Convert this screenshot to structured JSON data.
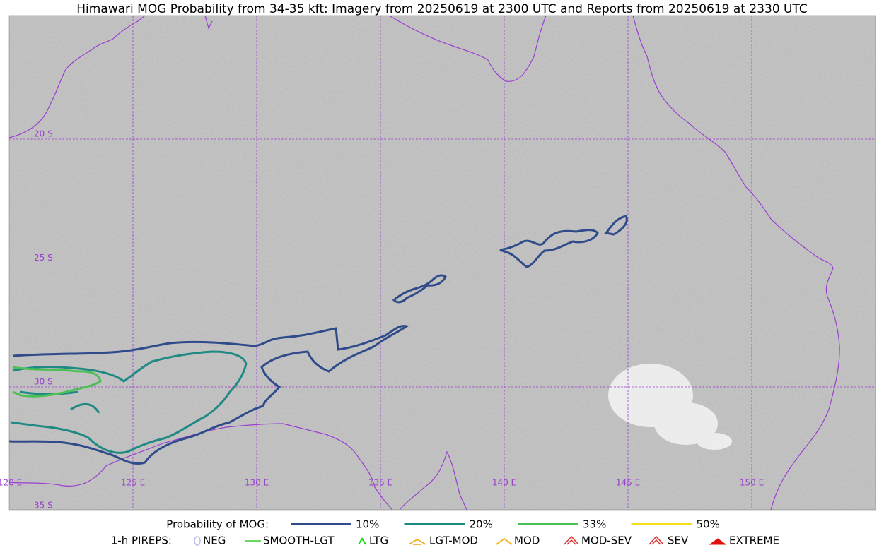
{
  "title": "Himawari MOG Probability from 34-35 kft: Imagery from 20250619 at 2300 UTC and Reports from 20250619 at 2330 UTC",
  "map": {
    "lat_labels": [
      "20 S",
      "25 S",
      "30 S",
      "35 S"
    ],
    "lon_labels": [
      "120 E",
      "125 E",
      "130 E",
      "135 E",
      "140 E",
      "145 E",
      "150 E"
    ]
  },
  "legend": {
    "mog_label": "Probability of MOG:",
    "mog_levels": [
      {
        "label": "10%",
        "color": "#2f4b8a"
      },
      {
        "label": "20%",
        "color": "#1f8a84"
      },
      {
        "label": "33%",
        "color": "#4cc055"
      },
      {
        "label": "50%",
        "color": "#f7e01a"
      }
    ],
    "pirep_label": "1-h PIREPS:",
    "pireps": [
      {
        "label": "NEG",
        "color": "#b8b8f0"
      },
      {
        "label": "SMOOTH-LGT",
        "color": "#33cc33"
      },
      {
        "label": "LTG",
        "color": "#11dd11"
      },
      {
        "label": "LGT-MOD",
        "color": "#f0b020"
      },
      {
        "label": "MOD",
        "color": "#f0b020"
      },
      {
        "label": "MOD-SEV",
        "color": "#e03030"
      },
      {
        "label": "SEV",
        "color": "#e03030"
      },
      {
        "label": "EXTREME",
        "color": "#e01010"
      }
    ]
  }
}
